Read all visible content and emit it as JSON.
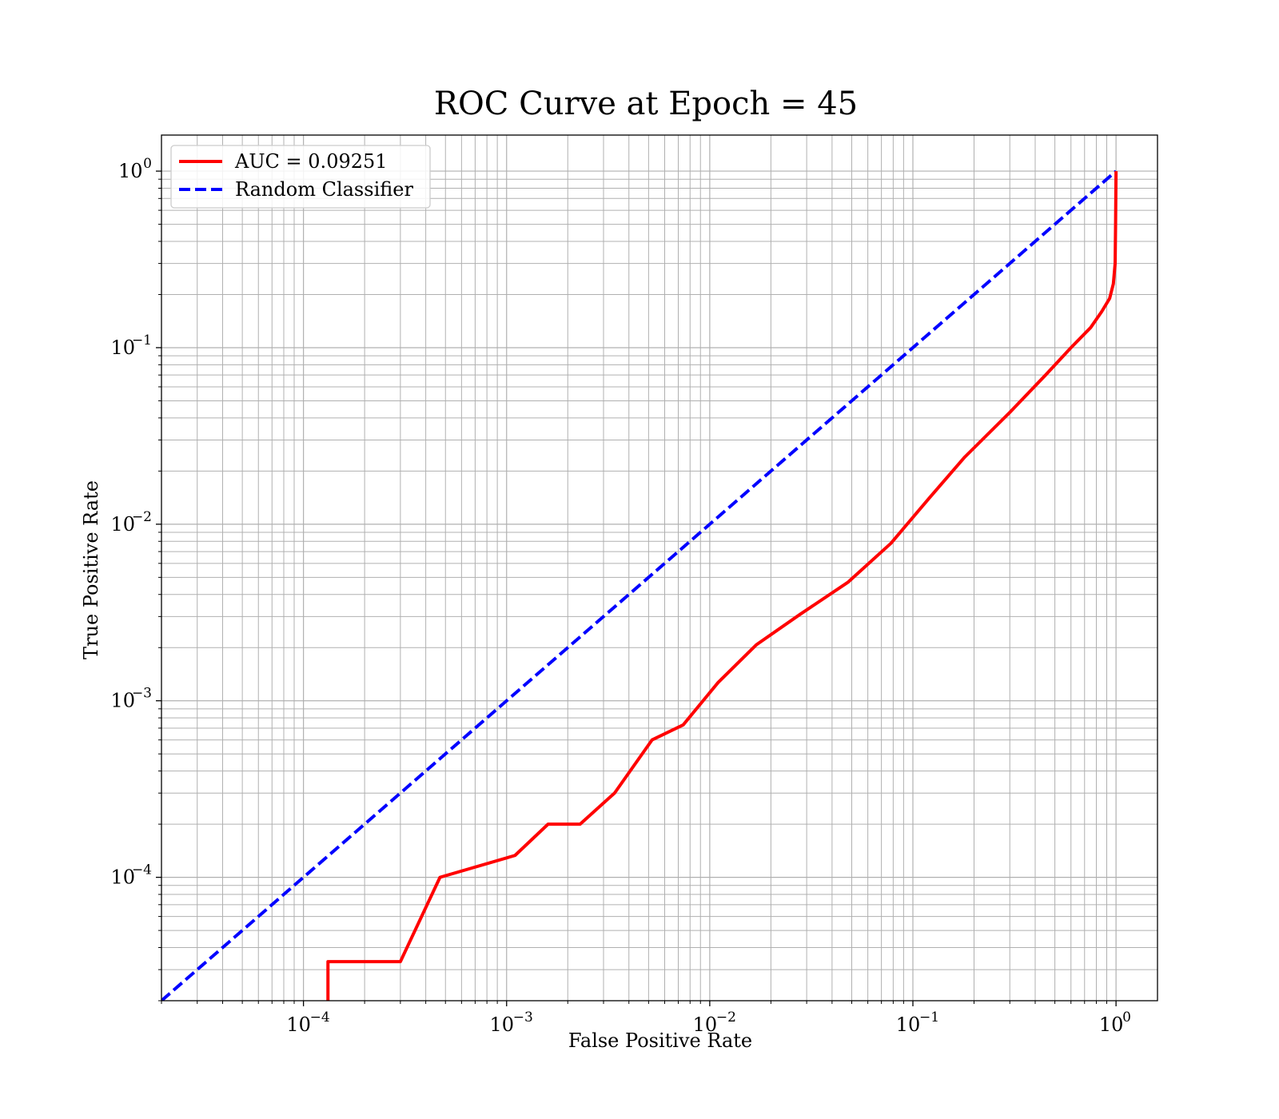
{
  "chart_data": {
    "type": "line",
    "title": "ROC Curve at Epoch = 45",
    "xlabel": "False Positive Rate",
    "ylabel": "True Positive Rate",
    "xscale": "log",
    "yscale": "log",
    "xlim": [
      2e-05,
      1.6
    ],
    "ylim": [
      2e-05,
      1.6
    ],
    "x_ticks": [
      {
        "base": "10",
        "exp": "−4",
        "value": 0.0001
      },
      {
        "base": "10",
        "exp": "−3",
        "value": 0.001
      },
      {
        "base": "10",
        "exp": "−2",
        "value": 0.01
      },
      {
        "base": "10",
        "exp": "−1",
        "value": 0.1
      },
      {
        "base": "10",
        "exp": "0",
        "value": 1
      }
    ],
    "y_ticks": [
      {
        "base": "10",
        "exp": "−4",
        "value": 0.0001
      },
      {
        "base": "10",
        "exp": "−3",
        "value": 0.001
      },
      {
        "base": "10",
        "exp": "−2",
        "value": 0.01
      },
      {
        "base": "10",
        "exp": "−1",
        "value": 0.1
      },
      {
        "base": "10",
        "exp": "0",
        "value": 1
      }
    ],
    "grid": "major and minor",
    "legend_position": "top-left",
    "series": [
      {
        "name": "AUC = 0.09251",
        "color": "#ff0000",
        "style": "solid",
        "points": [
          [
            0.000132,
            2e-05
          ],
          [
            0.000132,
            3.33e-05
          ],
          [
            0.0003,
            3.33e-05
          ],
          [
            0.00047,
            0.0001
          ],
          [
            0.0011,
            0.000133
          ],
          [
            0.0016,
            0.0002
          ],
          [
            0.0023,
            0.0002
          ],
          [
            0.0034,
            0.0003
          ],
          [
            0.0052,
            0.0006
          ],
          [
            0.0074,
            0.00073
          ],
          [
            0.011,
            0.00127
          ],
          [
            0.017,
            0.00208
          ],
          [
            0.028,
            0.0031
          ],
          [
            0.048,
            0.0047
          ],
          [
            0.078,
            0.0078
          ],
          [
            0.12,
            0.014
          ],
          [
            0.18,
            0.024
          ],
          [
            0.3,
            0.043
          ],
          [
            0.45,
            0.07
          ],
          [
            0.6,
            0.1
          ],
          [
            0.75,
            0.13
          ],
          [
            0.85,
            0.16
          ],
          [
            0.93,
            0.19
          ],
          [
            0.97,
            0.23
          ],
          [
            0.99,
            0.3
          ],
          [
            0.995,
            0.5
          ],
          [
            1.0,
            1.0
          ]
        ]
      },
      {
        "name": "Random Classifier",
        "color": "#0000ff",
        "style": "dashed",
        "points": [
          [
            2e-05,
            2e-05
          ],
          [
            1.0,
            1.0
          ]
        ]
      }
    ]
  }
}
